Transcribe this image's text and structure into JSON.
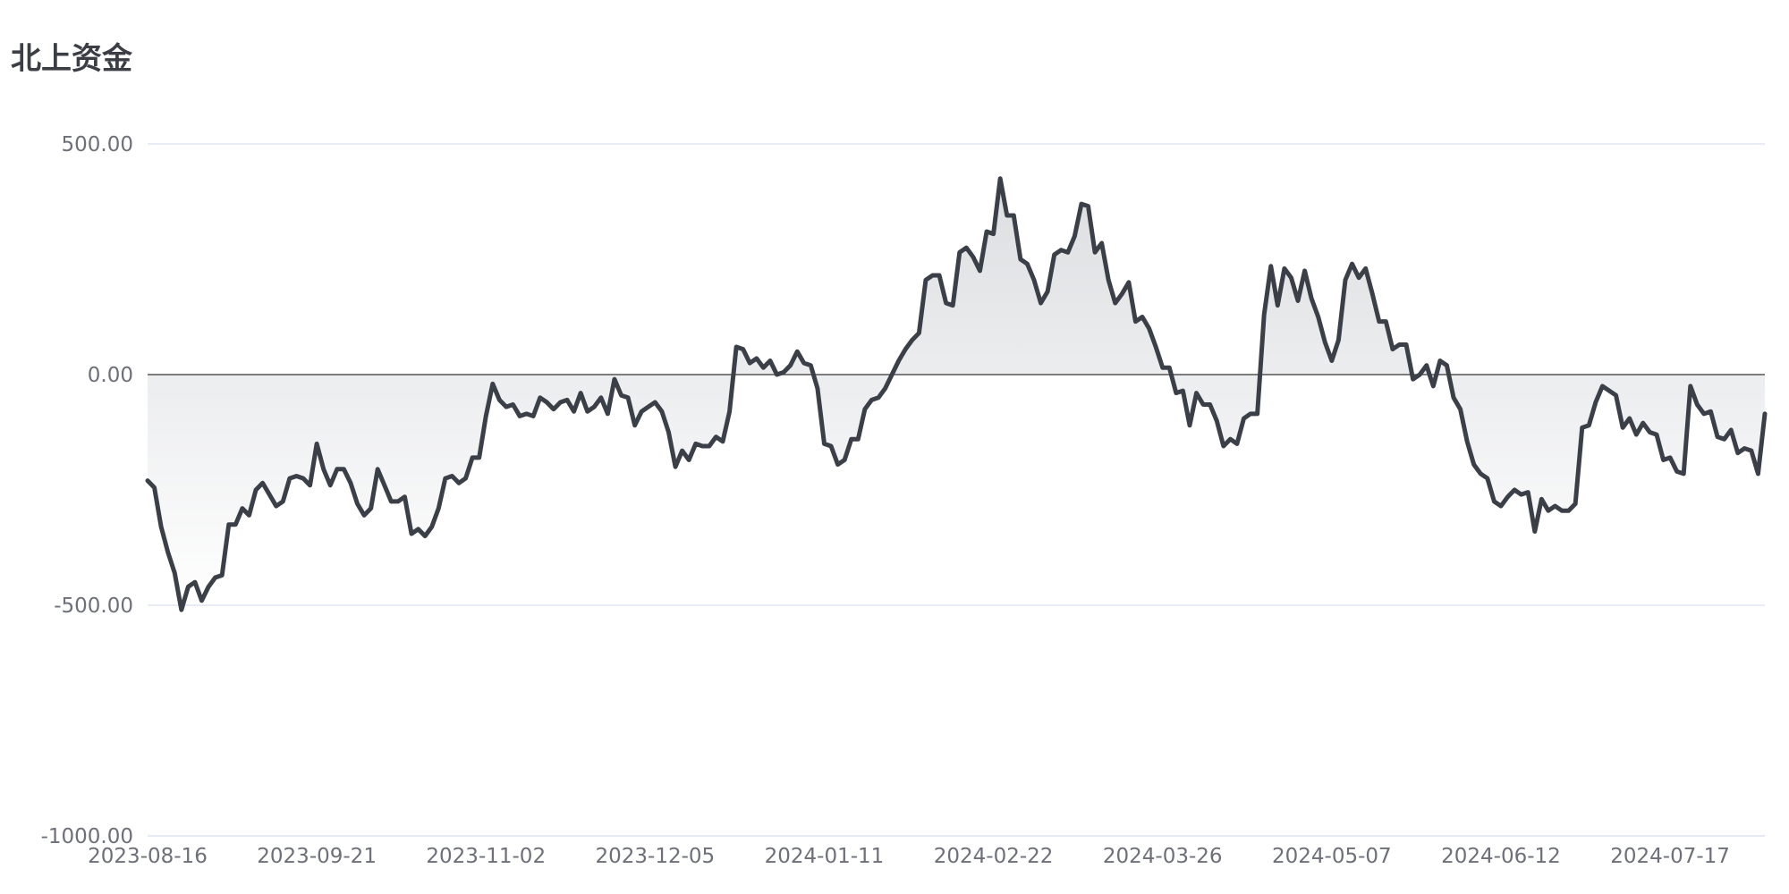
{
  "chart_data": {
    "type": "area",
    "title": "北上资金",
    "xlabel": "",
    "ylabel": "",
    "ylim": [
      -1000,
      500
    ],
    "yticks": [
      "500.00",
      "0.00",
      "-500.00",
      "-1000.00"
    ],
    "ytick_values": [
      500,
      0,
      -500,
      -1000
    ],
    "xticks": [
      "2023-08-16",
      "2023-09-21",
      "2023-11-02",
      "2023-12-05",
      "2024-01-11",
      "2024-02-22",
      "2024-03-26",
      "2024-05-07",
      "2024-06-12",
      "2024-07-17"
    ],
    "xtick_index": [
      0,
      25,
      50,
      75,
      100,
      125,
      150,
      175,
      200,
      225
    ],
    "grid": true,
    "legend": "none",
    "colors": {
      "line": "#3b4048",
      "fill": "#9aa0a8",
      "grid": "#e0e6f1",
      "zero": "#555555"
    },
    "series": [
      {
        "values": [
          -230,
          -245,
          -330,
          -385,
          -430,
          -510,
          -460,
          -450,
          -490,
          -460,
          -440,
          -435,
          -325,
          -325,
          -290,
          -305,
          -250,
          -235,
          -260,
          -285,
          -275,
          -225,
          -220,
          -225,
          -240,
          -150,
          -205,
          -240,
          -205,
          -205,
          -235,
          -280,
          -305,
          -290,
          -205,
          -240,
          -275,
          -275,
          -265,
          -345,
          -335,
          -350,
          -330,
          -290,
          -225,
          -220,
          -235,
          -225,
          -180,
          -180,
          -90,
          -20,
          -55,
          -70,
          -65,
          -90,
          -85,
          -90,
          -50,
          -60,
          -75,
          -60,
          -55,
          -80,
          -40,
          -80,
          -70,
          -50,
          -85,
          -10,
          -45,
          -50,
          -110,
          -80,
          -70,
          -60,
          -80,
          -125,
          -200,
          -165,
          -185,
          -150,
          -155,
          -155,
          -135,
          -145,
          -80,
          60,
          55,
          25,
          35,
          15,
          30,
          0,
          5,
          20,
          50,
          25,
          20,
          -30,
          -150,
          -155,
          -195,
          -185,
          -140,
          -140,
          -75,
          -55,
          -50,
          -30,
          0,
          30,
          55,
          75,
          90,
          205,
          215,
          215,
          155,
          150,
          265,
          275,
          255,
          225,
          310,
          305,
          425,
          345,
          345,
          250,
          240,
          205,
          155,
          180,
          260,
          270,
          265,
          300,
          370,
          365,
          265,
          285,
          205,
          155,
          175,
          200,
          115,
          125,
          100,
          60,
          15,
          15,
          -40,
          -35,
          -110,
          -40,
          -65,
          -65,
          -100,
          -155,
          -140,
          -150,
          -95,
          -85,
          -85,
          130,
          235,
          150,
          230,
          210,
          160,
          225,
          165,
          125,
          70,
          30,
          75,
          205,
          240,
          210,
          230,
          175,
          115,
          115,
          55,
          65,
          65,
          -10,
          0,
          20,
          -25,
          30,
          20,
          -50,
          -75,
          -145,
          -195,
          -215,
          -225,
          -275,
          -285,
          -265,
          -250,
          -260,
          -255,
          -340,
          -270,
          -295,
          -285,
          -295,
          -295,
          -280,
          -115,
          -110,
          -60,
          -25,
          -35,
          -45,
          -115,
          -95,
          -130,
          -105,
          -125,
          -130,
          -185,
          -180,
          -210,
          -215,
          -25,
          -65,
          -85,
          -80,
          -135,
          -140,
          -120,
          -170,
          -160,
          -165,
          -215,
          -85
        ]
      }
    ]
  }
}
